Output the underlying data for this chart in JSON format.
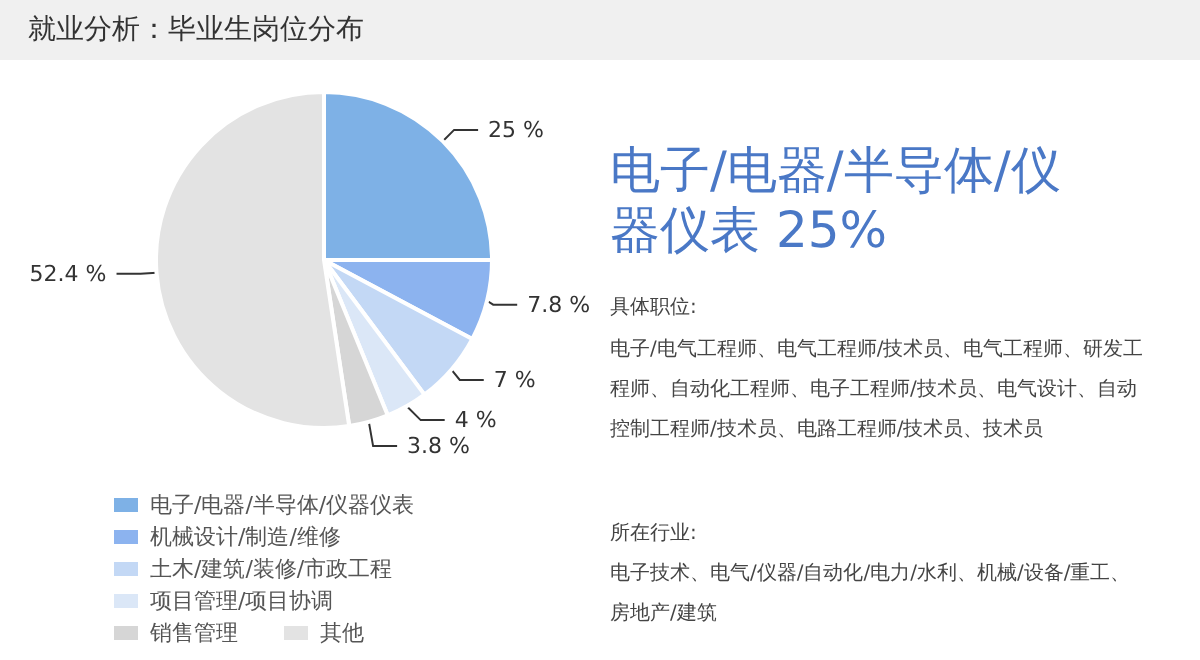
{
  "chart_data": {
    "type": "pie",
    "title": "就业分析：毕业生岗位分布",
    "categories": [
      "电子/电器/半导体/仪器仪表",
      "机械设计/制造/维修",
      "土木/建筑/装修/市政工程",
      "项目管理/项目协调",
      "销售管理",
      "其他"
    ],
    "values": [
      25,
      7.8,
      7,
      4,
      3.8,
      52.4
    ],
    "value_labels": [
      "25 %",
      "7.8 %",
      "7 %",
      "4 %",
      "3.8 %",
      "52.4 %"
    ],
    "colors": [
      "#7eb1e6",
      "#8cb3ef",
      "#c3d8f5",
      "#dbe7f7",
      "#d6d6d6",
      "#e3e3e3"
    ],
    "legend": "bottom left",
    "annotations": [
      "电子/电器/半导体/仪器仪表 25%",
      "具体职位:",
      "电子/电气工程师、电气工程师/技术员、电气工程师、研发工程师、自动化工程师、电子工程师/技术员、电气设计、自动控制工程师/技术员、电路工程师/技术员、技术员",
      "所在行业:",
      "电子技术、电气/仪器/自动化/电力/水利、机械/设备/重工、房地产/建筑"
    ]
  }
}
